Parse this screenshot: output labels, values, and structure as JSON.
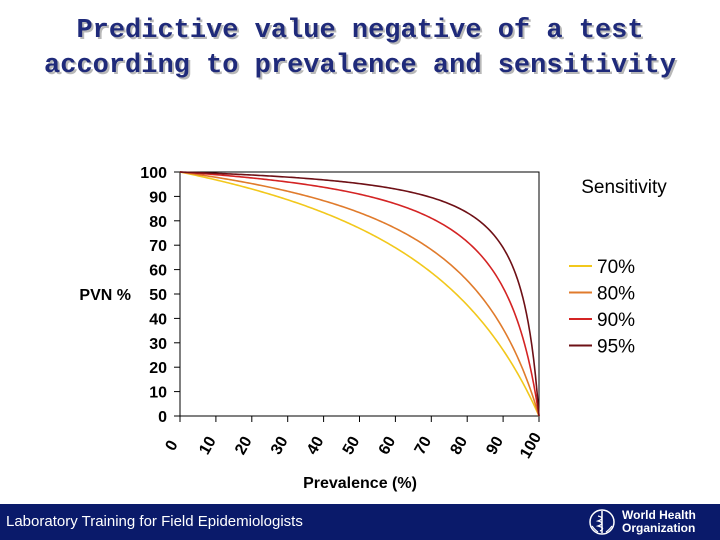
{
  "title": {
    "line1": "Predictive value negative of a test",
    "line2": "according to prevalence and sensitivity"
  },
  "footer": {
    "text": "Laboratory Training for Field Epidemiologists",
    "logo_line1": "World Health",
    "logo_line2": "Organization"
  },
  "chart_data": {
    "type": "line",
    "title": "Predictive value negative of a test according to prevalence and sensitivity",
    "xlabel": "Prevalence (%)",
    "ylabel": "PVN %",
    "xlim": [
      0,
      100
    ],
    "ylim": [
      0,
      100
    ],
    "xticks": [
      "0",
      "10",
      "20",
      "30",
      "40",
      "50",
      "60",
      "70",
      "80",
      "90",
      "100"
    ],
    "yticks": [
      "100",
      "90",
      "80",
      "70",
      "60",
      "50",
      "40",
      "30",
      "20",
      "10",
      "0"
    ],
    "legend_title": "Sensitivity",
    "legend_position": "right",
    "grid": false,
    "x": [
      0,
      10,
      20,
      30,
      40,
      50,
      60,
      70,
      80,
      90,
      100
    ],
    "series": [
      {
        "name": "70%",
        "color": "#f2c81c",
        "values": [
          100,
          96.8,
          93.0,
          88.6,
          83.3,
          76.9,
          69.0,
          58.8,
          45.5,
          27.0,
          0
        ]
      },
      {
        "name": "80%",
        "color": "#e07b2c",
        "values": [
          100,
          97.8,
          95.2,
          92.1,
          88.2,
          83.3,
          76.9,
          68.2,
          55.6,
          35.7,
          0
        ]
      },
      {
        "name": "90%",
        "color": "#d42424",
        "values": [
          100,
          98.8,
          97.6,
          95.9,
          93.8,
          90.9,
          87.0,
          81.1,
          71.4,
          52.6,
          0
        ]
      },
      {
        "name": "95%",
        "color": "#6e1016",
        "values": [
          100,
          99.4,
          98.8,
          97.9,
          96.8,
          95.2,
          93.0,
          89.6,
          83.3,
          69.0,
          0
        ]
      }
    ]
  }
}
